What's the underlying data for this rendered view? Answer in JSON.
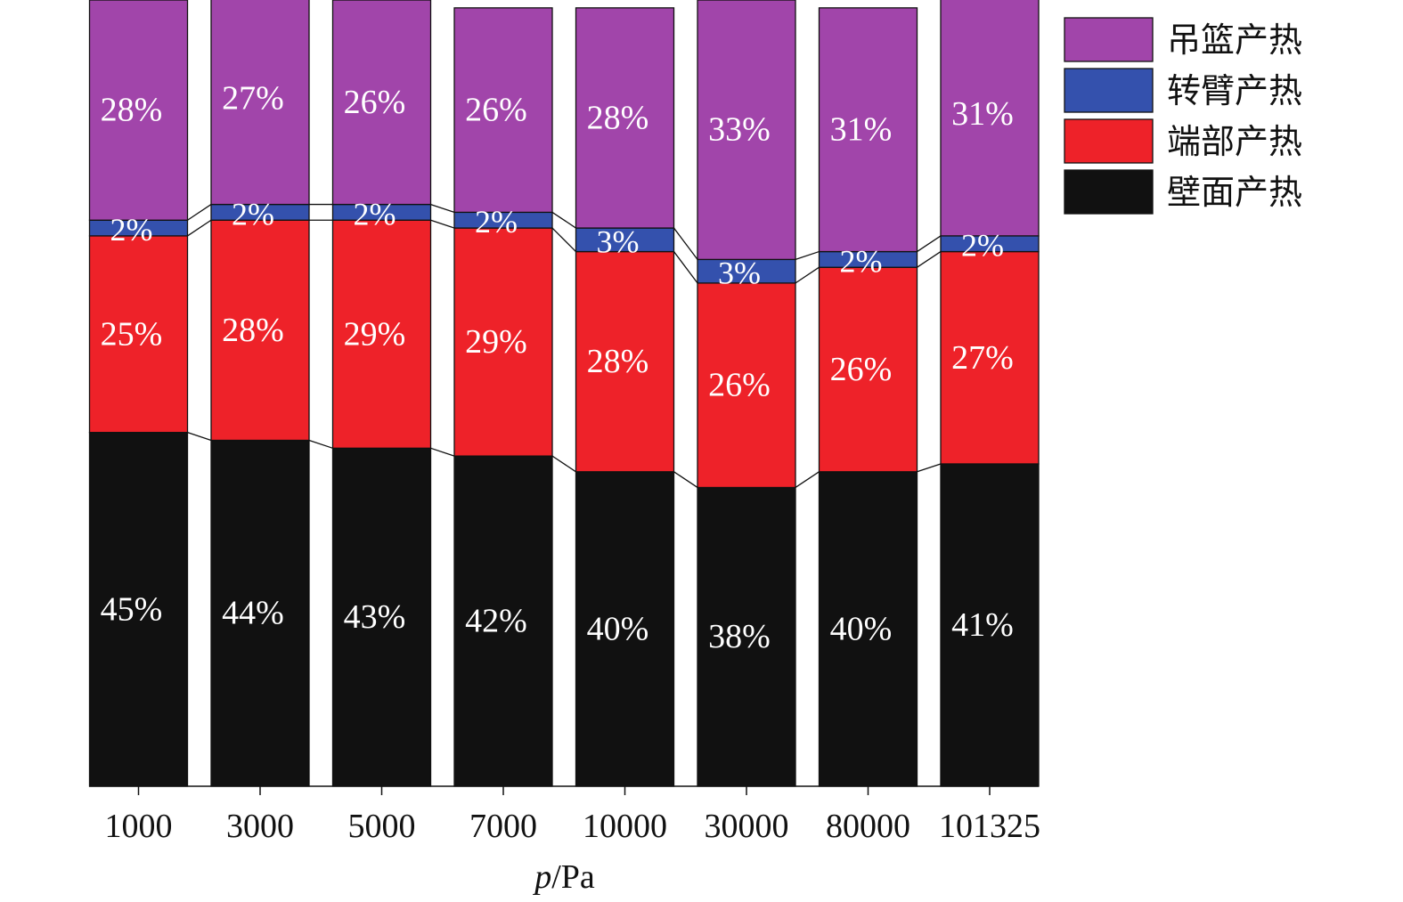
{
  "chart_data": {
    "type": "bar",
    "stacked": true,
    "normalized_percent": true,
    "categories": [
      "1000",
      "3000",
      "5000",
      "7000",
      "10000",
      "30000",
      "80000",
      "101325"
    ],
    "series": [
      {
        "name": "壁面产热",
        "color": "#111111",
        "values": [
          45,
          44,
          43,
          42,
          40,
          38,
          40,
          41
        ]
      },
      {
        "name": "端部产热",
        "color": "#ee2229",
        "values": [
          25,
          28,
          29,
          29,
          28,
          26,
          26,
          27
        ]
      },
      {
        "name": "转臂产热",
        "color": "#3451ad",
        "values": [
          2,
          2,
          2,
          2,
          3,
          3,
          2,
          2
        ]
      },
      {
        "name": "吊篮产热",
        "color": "#a145aa",
        "values": [
          28,
          27,
          26,
          26,
          28,
          33,
          31,
          31
        ]
      }
    ],
    "data_labels": [
      [
        "45%",
        "44%",
        "43%",
        "42%",
        "40%",
        "38%",
        "40%",
        "41%"
      ],
      [
        "25%",
        "28%",
        "29%",
        "29%",
        "28%",
        "26%",
        "26%",
        "27%"
      ],
      [
        "2%",
        "2%",
        "2%",
        "2%",
        "3%",
        "3%",
        "2%",
        "2%"
      ],
      [
        "28%",
        "27%",
        "26%",
        "26%",
        "28%",
        "33%",
        "31%",
        "31%"
      ]
    ],
    "legend_order": [
      "吊篮产热",
      "转臂产热",
      "端部产热",
      "壁面产热"
    ],
    "xlabel_italic": "p",
    "xlabel_rest": "/Pa",
    "ylim": [
      0,
      100
    ],
    "grid": false,
    "legend_position": "top-right",
    "connector_lines": true
  }
}
